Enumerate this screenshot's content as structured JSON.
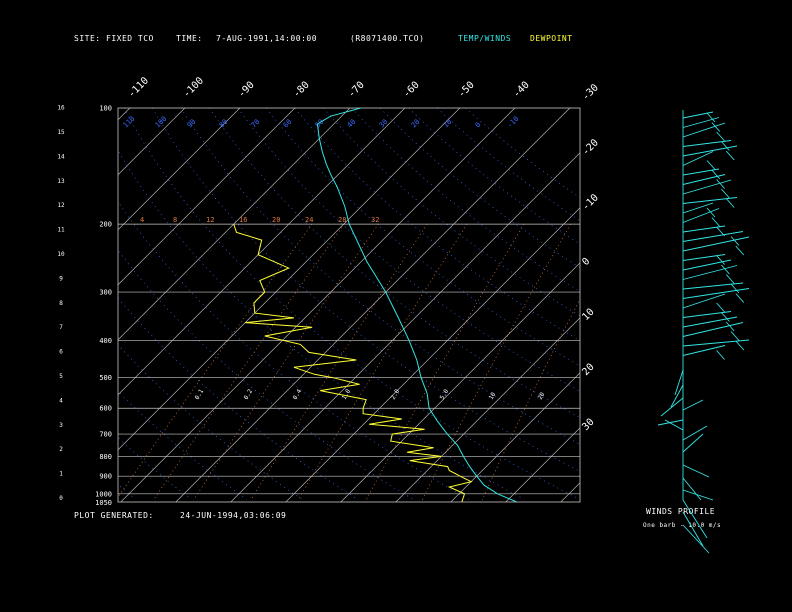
{
  "header": {
    "site_label": "SITE:",
    "site_value": "FIXED TCO",
    "time_label": "TIME:",
    "time_value": "7-AUG-1991,14:00:00",
    "file_name": "(R8071400.TCO)",
    "legend_temp_winds": "TEMP/WINDS",
    "legend_dewpoint": "DEWPOINT"
  },
  "footer": {
    "generated_label": "PLOT GENERATED:",
    "generated_value": "24-JUN-1994,03:06:09"
  },
  "winds_panel": {
    "title": "WINDS PROFILE",
    "note": "One barb - 10.0 m/s"
  },
  "colors": {
    "temp": "#33e5e5",
    "dewpoint": "#ffff33",
    "grid": "#c8c8c8",
    "isotherm_label": "#ffffff",
    "dry_adiabat": "#3b6cff",
    "mixing_ratio": "#e07a40"
  },
  "chart_data": {
    "type": "line",
    "subtype": "skew-T log-p thermodynamic diagram",
    "pressure_levels_hPa": [
      "100",
      "200",
      "300",
      "400",
      "500",
      "600",
      "700",
      "800",
      "900",
      "1000",
      "1050"
    ],
    "height_km_ticks": [
      "16",
      "15",
      "14",
      "13",
      "12",
      "11",
      "10",
      "9",
      "8",
      "7",
      "6",
      "5",
      "4",
      "3",
      "2",
      "1",
      "0"
    ],
    "isotherm_labels_top": [
      "-110",
      "-100",
      "-90",
      "-80",
      "-70",
      "-60",
      "-50",
      "-40"
    ],
    "isotherm_labels_right": [
      "-30",
      "-20",
      "-10",
      "0",
      "10",
      "20",
      "30"
    ],
    "dry_adiabat_labels_top": [
      "110",
      "100",
      "90",
      "80",
      "70",
      "60",
      "50",
      "40",
      "30",
      "20",
      "10",
      "0",
      "-10"
    ],
    "mixing_ratio_labels_200": [
      "4",
      "8",
      "12",
      "16",
      "20",
      "24",
      "28",
      "32"
    ],
    "mixing_ratio_labels_550": [
      "0.1",
      "0.2",
      "0.4",
      "1.0",
      "2.0",
      "5.0",
      "10",
      "20"
    ],
    "x_range_degC_at_1000": [
      -40,
      40
    ],
    "y_range_hPa": [
      100,
      1050
    ],
    "series": [
      {
        "name": "TEMP/WINDS",
        "points_p_T": [
          [
            1050,
            32
          ],
          [
            1000,
            27
          ],
          [
            950,
            23
          ],
          [
            900,
            20
          ],
          [
            850,
            17
          ],
          [
            800,
            14
          ],
          [
            750,
            11
          ],
          [
            700,
            7
          ],
          [
            650,
            3
          ],
          [
            600,
            -1
          ],
          [
            550,
            -4
          ],
          [
            500,
            -8
          ],
          [
            450,
            -12
          ],
          [
            400,
            -17
          ],
          [
            350,
            -23
          ],
          [
            300,
            -30
          ],
          [
            250,
            -39
          ],
          [
            200,
            -49
          ],
          [
            180,
            -53
          ],
          [
            160,
            -58
          ],
          [
            150,
            -61
          ],
          [
            140,
            -64
          ],
          [
            130,
            -67
          ],
          [
            120,
            -70
          ],
          [
            110,
            -73
          ],
          [
            105,
            -72
          ],
          [
            100,
            -68
          ]
        ]
      },
      {
        "name": "DEWPOINT",
        "points_p_Td": [
          [
            1050,
            22
          ],
          [
            1000,
            21
          ],
          [
            960,
            17
          ],
          [
            930,
            20
          ],
          [
            900,
            17
          ],
          [
            870,
            14
          ],
          [
            850,
            13
          ],
          [
            820,
            5
          ],
          [
            800,
            10
          ],
          [
            780,
            3
          ],
          [
            760,
            7
          ],
          [
            730,
            -2
          ],
          [
            700,
            -3
          ],
          [
            680,
            2
          ],
          [
            660,
            -9
          ],
          [
            640,
            -4
          ],
          [
            620,
            -12
          ],
          [
            600,
            -13
          ],
          [
            570,
            -14
          ],
          [
            540,
            -24
          ],
          [
            520,
            -18
          ],
          [
            500,
            -24
          ],
          [
            490,
            -28
          ],
          [
            470,
            -33
          ],
          [
            450,
            -23
          ],
          [
            430,
            -33
          ],
          [
            410,
            -36
          ],
          [
            390,
            -44
          ],
          [
            370,
            -37
          ],
          [
            360,
            -50
          ],
          [
            350,
            -42
          ],
          [
            340,
            -50
          ],
          [
            320,
            -52
          ],
          [
            300,
            -52
          ],
          [
            280,
            -55
          ],
          [
            260,
            -52
          ],
          [
            240,
            -60
          ],
          [
            220,
            -62
          ],
          [
            210,
            -68
          ],
          [
            200,
            -70
          ]
        ]
      }
    ]
  }
}
